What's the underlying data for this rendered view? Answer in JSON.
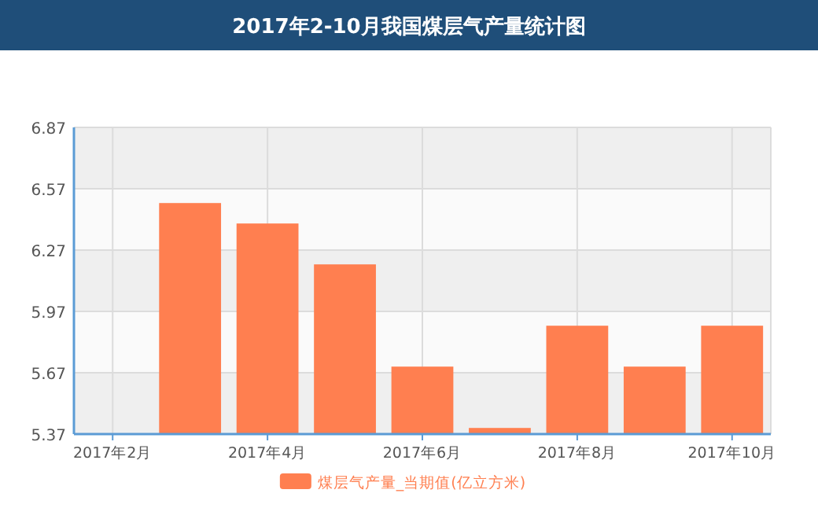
{
  "chart_data": {
    "type": "bar",
    "title": "2017年2-10月我国煤层气产量统计图",
    "categories": [
      "2017年2月",
      null,
      "2017年4月",
      null,
      "2017年6月",
      null,
      "2017年8月",
      null,
      "2017年10月"
    ],
    "series": [
      {
        "name": "煤层气产量_当期值(亿立方米)",
        "color": "#ff7f50",
        "values": [
          null,
          6.5,
          6.4,
          6.2,
          5.7,
          5.4,
          5.9,
          5.7,
          5.9
        ]
      }
    ],
    "ylim": [
      5.37,
      6.87
    ],
    "yticks": [
      5.37,
      5.67,
      5.97,
      6.27,
      6.57,
      6.87
    ],
    "grid": true,
    "legend": "bottom"
  }
}
